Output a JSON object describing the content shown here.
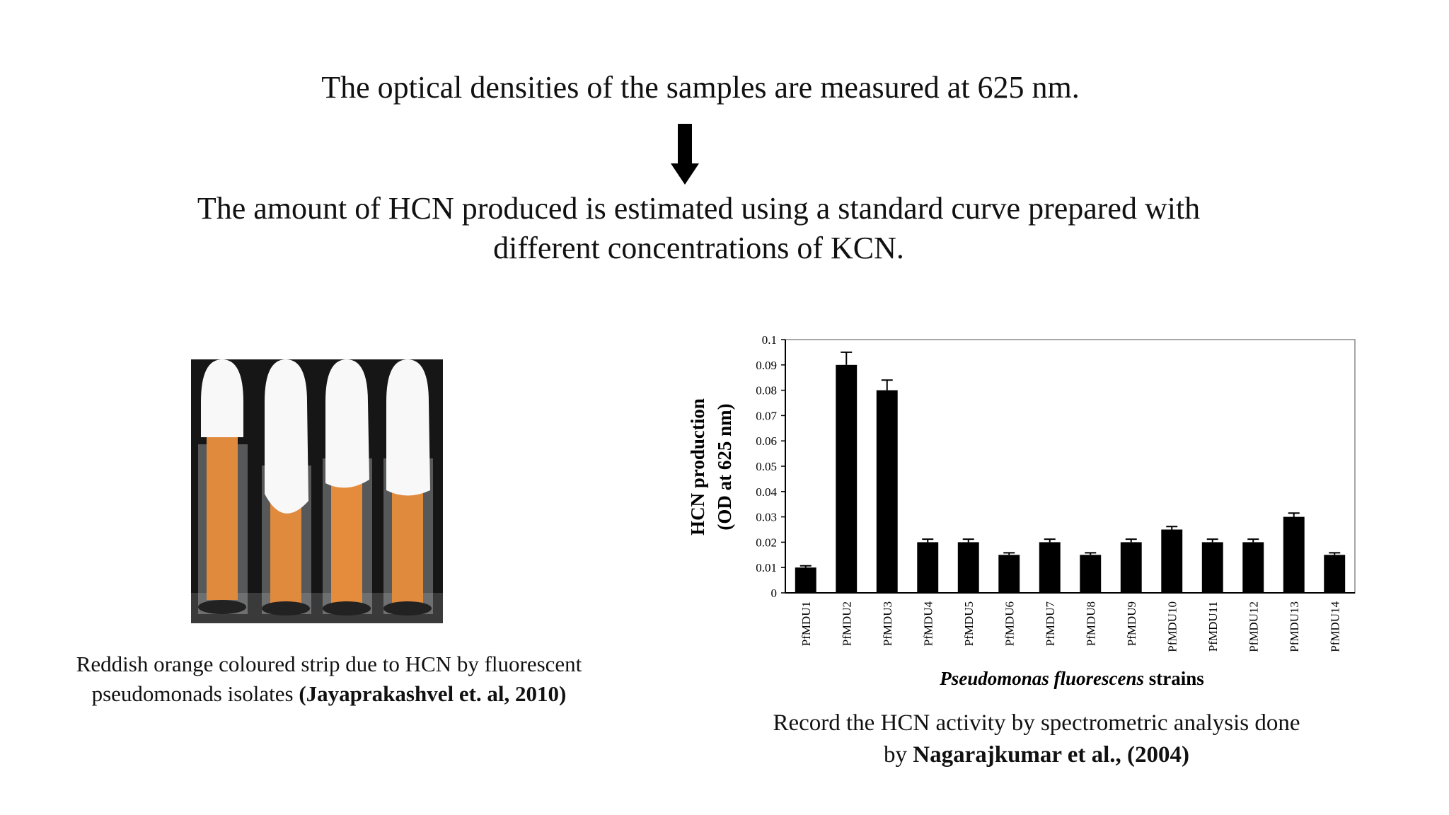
{
  "slide": {
    "step1": "The optical densities of the samples are measured at 625 nm.",
    "step2_line1": "The amount of HCN produced is estimated using a standard curve prepared with",
    "step2_line2": "different concentrations of KCN.",
    "photo_caption_line1": "Reddish orange coloured strip due to HCN by fluorescent",
    "photo_caption_line2_pre": "pseudomonads isolates ",
    "photo_caption_line2_bold": "(Jayaprakashvel et. al, 2010)",
    "chart_caption_line1": "Record the HCN activity by spectrometric analysis done",
    "chart_caption_line2_pre": "by ",
    "chart_caption_line2_bold": "Nagarajkumar et al., (2004)"
  },
  "colors": {
    "bar": "#000000",
    "strip": "#e0823a",
    "cotton": "#f7f7f7",
    "background_photo": "#111111"
  },
  "chart_data": {
    "type": "bar",
    "categories": [
      "PfMDU1",
      "PfMDU2",
      "PfMDU3",
      "PfMDU4",
      "PfMDU5",
      "PfMDU6",
      "PfMDU7",
      "PfMDU8",
      "PfMDU9",
      "PfMDU10",
      "PfMDU11",
      "PfMDU12",
      "PfMDU13",
      "PfMDU14"
    ],
    "values": [
      0.01,
      0.09,
      0.08,
      0.02,
      0.02,
      0.015,
      0.02,
      0.015,
      0.02,
      0.025,
      0.02,
      0.02,
      0.03,
      0.015
    ],
    "errors": [
      0.0007,
      0.005,
      0.004,
      0.0012,
      0.0012,
      0.0008,
      0.0012,
      0.0008,
      0.0012,
      0.0012,
      0.0012,
      0.0012,
      0.0015,
      0.0008
    ],
    "ylim": [
      0,
      0.1
    ],
    "yticks": [
      "0",
      "0.01",
      "0.02",
      "0.03",
      "0.04",
      "0.05",
      "0.06",
      "0.07",
      "0.08",
      "0.09",
      "0.1"
    ],
    "ylabel_line1": "HCN production",
    "ylabel_line2": "(OD at 625 nm)",
    "xlabel_italic": "Pseudomonas fluorescens",
    "xlabel_rest": " strains",
    "grid": false,
    "legend": "none"
  }
}
